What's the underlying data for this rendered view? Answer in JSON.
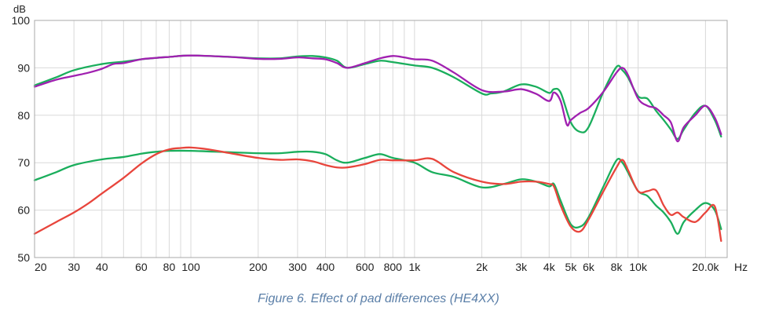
{
  "chart_data": {
    "type": "line",
    "title": "",
    "xlabel": "Hz",
    "ylabel": "dB",
    "xscale": "log",
    "xlim": [
      20,
      25000
    ],
    "ylim": [
      50,
      100
    ],
    "grid": true,
    "x_tick_labels": [
      {
        "x": 20,
        "label": "20"
      },
      {
        "x": 30,
        "label": "30"
      },
      {
        "x": 40,
        "label": "40"
      },
      {
        "x": 60,
        "label": "60"
      },
      {
        "x": 80,
        "label": "80"
      },
      {
        "x": 100,
        "label": "100"
      },
      {
        "x": 200,
        "label": "200"
      },
      {
        "x": 300,
        "label": "300"
      },
      {
        "x": 400,
        "label": "400"
      },
      {
        "x": 600,
        "label": "600"
      },
      {
        "x": 800,
        "label": "800"
      },
      {
        "x": 1000,
        "label": "1k"
      },
      {
        "x": 2000,
        "label": "2k"
      },
      {
        "x": 3000,
        "label": "3k"
      },
      {
        "x": 4000,
        "label": "4k"
      },
      {
        "x": 5000,
        "label": "5k"
      },
      {
        "x": 6000,
        "label": "6k"
      },
      {
        "x": 8000,
        "label": "8k"
      },
      {
        "x": 10000,
        "label": "10k"
      },
      {
        "x": 20000,
        "label": "20.0k"
      }
    ],
    "y_tick_labels": [
      {
        "y": 50,
        "label": "50"
      },
      {
        "y": 60,
        "label": "60"
      },
      {
        "y": 70,
        "label": "70"
      },
      {
        "y": 80,
        "label": "80"
      },
      {
        "y": 90,
        "label": "90"
      },
      {
        "y": 100,
        "label": "100"
      }
    ],
    "minor_grid_x": [
      20,
      30,
      40,
      50,
      60,
      70,
      80,
      90,
      100,
      200,
      300,
      400,
      500,
      600,
      700,
      800,
      900,
      1000,
      2000,
      3000,
      4000,
      5000,
      6000,
      7000,
      8000,
      9000,
      10000,
      20000
    ],
    "series": [
      {
        "name": "upper-green",
        "color": "#1aae5c",
        "x": [
          20,
          25,
          30,
          40,
          50,
          60,
          70,
          80,
          100,
          150,
          200,
          250,
          300,
          350,
          400,
          450,
          500,
          600,
          700,
          800,
          1000,
          1200,
          1500,
          2000,
          2200,
          2500,
          3000,
          3500,
          4000,
          4200,
          4500,
          5000,
          5500,
          6000,
          7000,
          8000,
          8500,
          9000,
          10000,
          11000,
          12000,
          13000,
          14000,
          15000,
          16000,
          18000,
          20000,
          22000,
          23500
        ],
        "y": [
          86.3,
          88.0,
          89.5,
          90.8,
          91.3,
          91.8,
          92.1,
          92.3,
          92.6,
          92.3,
          92.0,
          92.0,
          92.4,
          92.5,
          92.2,
          91.5,
          90.0,
          90.8,
          91.5,
          91.2,
          90.5,
          90.0,
          88.0,
          84.6,
          84.6,
          85.0,
          86.5,
          86.0,
          84.7,
          85.5,
          84.8,
          78.5,
          76.5,
          77.5,
          85.0,
          90.2,
          89.5,
          88.0,
          84.0,
          83.5,
          81.0,
          79.0,
          77.0,
          75.0,
          77.0,
          80.5,
          82.0,
          79.0,
          75.5
        ]
      },
      {
        "name": "upper-purple",
        "color": "#a020b0",
        "x": [
          20,
          25,
          30,
          35,
          40,
          45,
          50,
          60,
          70,
          80,
          100,
          150,
          200,
          250,
          300,
          350,
          400,
          450,
          500,
          600,
          700,
          800,
          900,
          1000,
          1200,
          1500,
          2000,
          2500,
          3000,
          3500,
          4000,
          4200,
          4500,
          4800,
          5000,
          5500,
          6000,
          7000,
          8000,
          8500,
          9000,
          10000,
          11000,
          12000,
          13000,
          14000,
          15000,
          16000,
          18000,
          20000,
          22000,
          23500
        ],
        "y": [
          86.0,
          87.5,
          88.3,
          89.0,
          89.8,
          90.8,
          91.0,
          91.8,
          92.1,
          92.3,
          92.6,
          92.3,
          91.9,
          91.9,
          92.2,
          92.0,
          91.8,
          91.0,
          90.0,
          91.0,
          92.0,
          92.5,
          92.2,
          91.8,
          91.5,
          89.0,
          85.3,
          85.0,
          85.5,
          84.5,
          83.0,
          84.8,
          83.0,
          78.0,
          79.0,
          80.5,
          81.5,
          85.0,
          89.0,
          90.0,
          88.5,
          83.5,
          82.0,
          81.5,
          80.0,
          78.5,
          74.5,
          77.5,
          80.0,
          82.0,
          79.5,
          76.0
        ]
      },
      {
        "name": "lower-green",
        "color": "#1aae5c",
        "x": [
          20,
          25,
          30,
          40,
          50,
          60,
          70,
          80,
          100,
          150,
          200,
          250,
          300,
          350,
          400,
          450,
          500,
          600,
          700,
          800,
          1000,
          1200,
          1500,
          2000,
          2500,
          3000,
          3500,
          4000,
          4200,
          4500,
          5000,
          5500,
          6000,
          7000,
          8000,
          8500,
          9000,
          10000,
          11000,
          12000,
          13000,
          14000,
          15000,
          16000,
          18000,
          20000,
          22000,
          23500
        ],
        "y": [
          66.3,
          68.0,
          69.5,
          70.7,
          71.2,
          71.9,
          72.3,
          72.5,
          72.5,
          72.2,
          72.0,
          72.0,
          72.3,
          72.3,
          71.8,
          70.5,
          70.0,
          71.0,
          71.8,
          71.0,
          70.0,
          68.0,
          67.0,
          64.8,
          65.5,
          66.5,
          66.0,
          65.0,
          65.5,
          62.0,
          57.0,
          56.5,
          58.5,
          65.0,
          70.5,
          70.0,
          68.0,
          64.0,
          63.0,
          61.0,
          59.5,
          57.5,
          55.0,
          57.5,
          60.0,
          61.5,
          60.0,
          56.0
        ]
      },
      {
        "name": "lower-red",
        "color": "#e8453c",
        "x": [
          20,
          25,
          30,
          35,
          40,
          50,
          60,
          70,
          80,
          90,
          100,
          120,
          150,
          200,
          250,
          300,
          350,
          400,
          450,
          500,
          600,
          700,
          800,
          1000,
          1200,
          1500,
          2000,
          2500,
          3000,
          3500,
          4000,
          4200,
          4500,
          5000,
          5500,
          6000,
          7000,
          8000,
          8500,
          9000,
          10000,
          11000,
          12000,
          13000,
          14000,
          15000,
          16000,
          18000,
          20000,
          22000,
          23500
        ],
        "y": [
          55.0,
          57.5,
          59.5,
          61.5,
          63.5,
          66.8,
          69.8,
          71.8,
          72.8,
          73.1,
          73.2,
          72.8,
          72.0,
          71.0,
          70.6,
          70.7,
          70.3,
          69.5,
          69.0,
          69.0,
          69.7,
          70.6,
          70.5,
          70.5,
          70.8,
          68.0,
          66.0,
          65.5,
          66.0,
          66.0,
          65.5,
          65.0,
          61.0,
          56.5,
          55.5,
          58.0,
          64.0,
          69.0,
          70.6,
          68.5,
          64.0,
          64.0,
          64.2,
          61.0,
          59.0,
          59.5,
          58.5,
          57.5,
          59.5,
          60.8,
          53.5
        ]
      }
    ]
  },
  "caption": "Figure 6. Effect of pad differences (HE4XX)"
}
